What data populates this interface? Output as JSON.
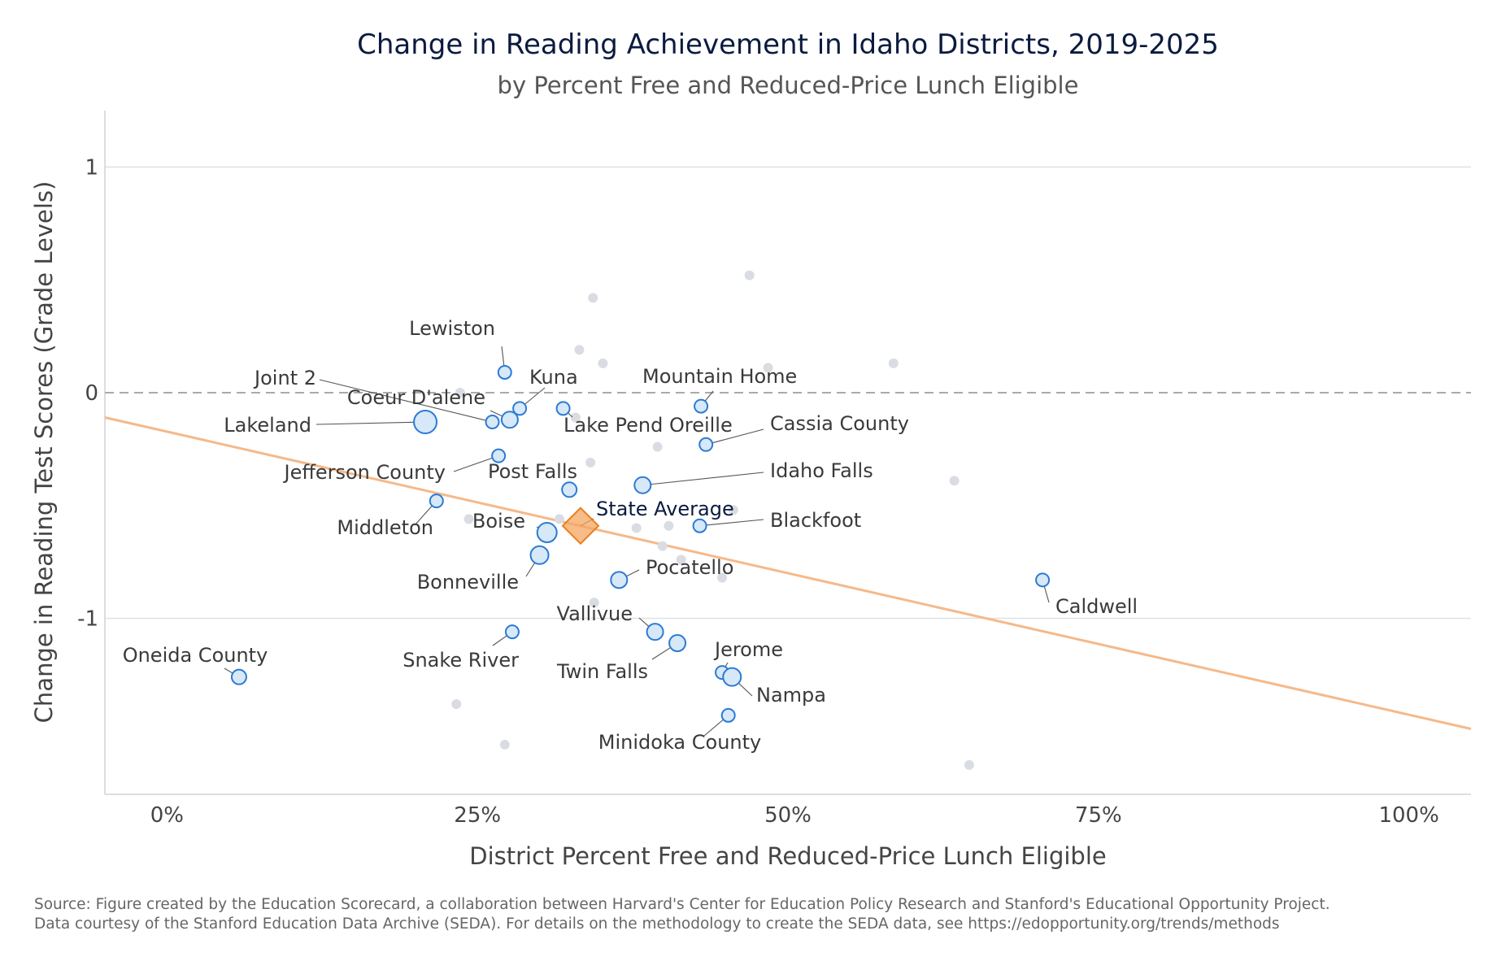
{
  "title": "Change in Reading Achievement in Idaho Districts, 2019-2025",
  "subtitle": "by Percent Free and Reduced-Price Lunch Eligible",
  "source_line_1": "Source: Figure created by the Education Scorecard, a collaboration between Harvard's Center for Education Policy Research and Stanford's Educational Opportunity Project.",
  "source_line_2": "Data courtesy of the Stanford Education Data Archive (SEDA). For details on the methodology to create the SEDA data, see https://edopportunity.org/trends/methods",
  "chart_data": {
    "type": "scatter",
    "xlabel": "District Percent Free and Reduced-Price Lunch Eligible",
    "ylabel": "Change in Reading Test Scores (Grade Levels)",
    "xlim": [
      -0.05,
      1.05
    ],
    "ylim": [
      -1.78,
      1.25
    ],
    "x_ticks": [
      0,
      0.25,
      0.5,
      0.75,
      1.0
    ],
    "x_tick_labels": [
      "0%",
      "25%",
      "50%",
      "75%",
      "100%"
    ],
    "y_ticks": [
      1,
      0,
      -1
    ],
    "y_tick_labels": [
      "1",
      "0",
      "-1"
    ],
    "reference_line_y": 0,
    "trend_line": {
      "x": [
        -0.05,
        1.05
      ],
      "y": [
        -0.11,
        -1.49
      ],
      "color": "#f5b98a"
    },
    "colors": {
      "highlight_fill": "#d7e8f9",
      "highlight_stroke": "#2b7bd4",
      "background": "#d9dde3",
      "state": "#f4a660",
      "state_stroke": "#e9801f"
    },
    "labeled_districts": [
      {
        "name": "Lewiston",
        "x": 0.272,
        "y": 0.09
      },
      {
        "name": "Joint 2",
        "x": 0.262,
        "y": -0.13
      },
      {
        "name": "Lakeland",
        "x": 0.208,
        "y": -0.13
      },
      {
        "name": "Coeur D'alene",
        "x": 0.276,
        "y": -0.12
      },
      {
        "name": "Kuna",
        "x": 0.284,
        "y": -0.07
      },
      {
        "name": "Lake Pend Oreille",
        "x": 0.319,
        "y": -0.07
      },
      {
        "name": "Mountain Home",
        "x": 0.43,
        "y": -0.06
      },
      {
        "name": "Cassia County",
        "x": 0.434,
        "y": -0.23
      },
      {
        "name": "Jefferson County",
        "x": 0.267,
        "y": -0.28
      },
      {
        "name": "Post Falls",
        "x": 0.324,
        "y": -0.43
      },
      {
        "name": "Idaho Falls",
        "x": 0.383,
        "y": -0.41
      },
      {
        "name": "Middleton",
        "x": 0.217,
        "y": -0.48
      },
      {
        "name": "Boise",
        "x": 0.306,
        "y": -0.62
      },
      {
        "name": "Blackfoot",
        "x": 0.429,
        "y": -0.59
      },
      {
        "name": "Bonneville",
        "x": 0.3,
        "y": -0.72
      },
      {
        "name": "Pocatello",
        "x": 0.364,
        "y": -0.83
      },
      {
        "name": "Caldwell",
        "x": 0.705,
        "y": -0.83
      },
      {
        "name": "Vallivue",
        "x": 0.393,
        "y": -1.06
      },
      {
        "name": "Twin Falls",
        "x": 0.411,
        "y": -1.11
      },
      {
        "name": "Snake River",
        "x": 0.278,
        "y": -1.06
      },
      {
        "name": "Oneida County",
        "x": 0.058,
        "y": -1.26
      },
      {
        "name": "Jerome",
        "x": 0.447,
        "y": -1.24
      },
      {
        "name": "Nampa",
        "x": 0.455,
        "y": -1.26
      },
      {
        "name": "Minidoka County",
        "x": 0.452,
        "y": -1.43
      }
    ],
    "state_average": {
      "name": "State Average",
      "x": 0.333,
      "y": -0.59
    },
    "other_districts": [
      {
        "x": 0.343,
        "y": 0.42
      },
      {
        "x": 0.469,
        "y": 0.52
      },
      {
        "x": 0.332,
        "y": 0.19
      },
      {
        "x": 0.351,
        "y": 0.13
      },
      {
        "x": 0.585,
        "y": 0.13
      },
      {
        "x": 0.484,
        "y": 0.11
      },
      {
        "x": 0.236,
        "y": 0.0
      },
      {
        "x": 0.329,
        "y": -0.11
      },
      {
        "x": 0.395,
        "y": -0.24
      },
      {
        "x": 0.341,
        "y": -0.31
      },
      {
        "x": 0.634,
        "y": -0.39
      },
      {
        "x": 0.456,
        "y": -0.52
      },
      {
        "x": 0.243,
        "y": -0.56
      },
      {
        "x": 0.316,
        "y": -0.56
      },
      {
        "x": 0.378,
        "y": -0.6
      },
      {
        "x": 0.404,
        "y": -0.59
      },
      {
        "x": 0.399,
        "y": -0.68
      },
      {
        "x": 0.414,
        "y": -0.74
      },
      {
        "x": 0.447,
        "y": -0.82
      },
      {
        "x": 0.344,
        "y": -0.93
      },
      {
        "x": 0.233,
        "y": -1.38
      },
      {
        "x": 0.272,
        "y": -1.56
      },
      {
        "x": 0.646,
        "y": -1.65
      }
    ]
  }
}
